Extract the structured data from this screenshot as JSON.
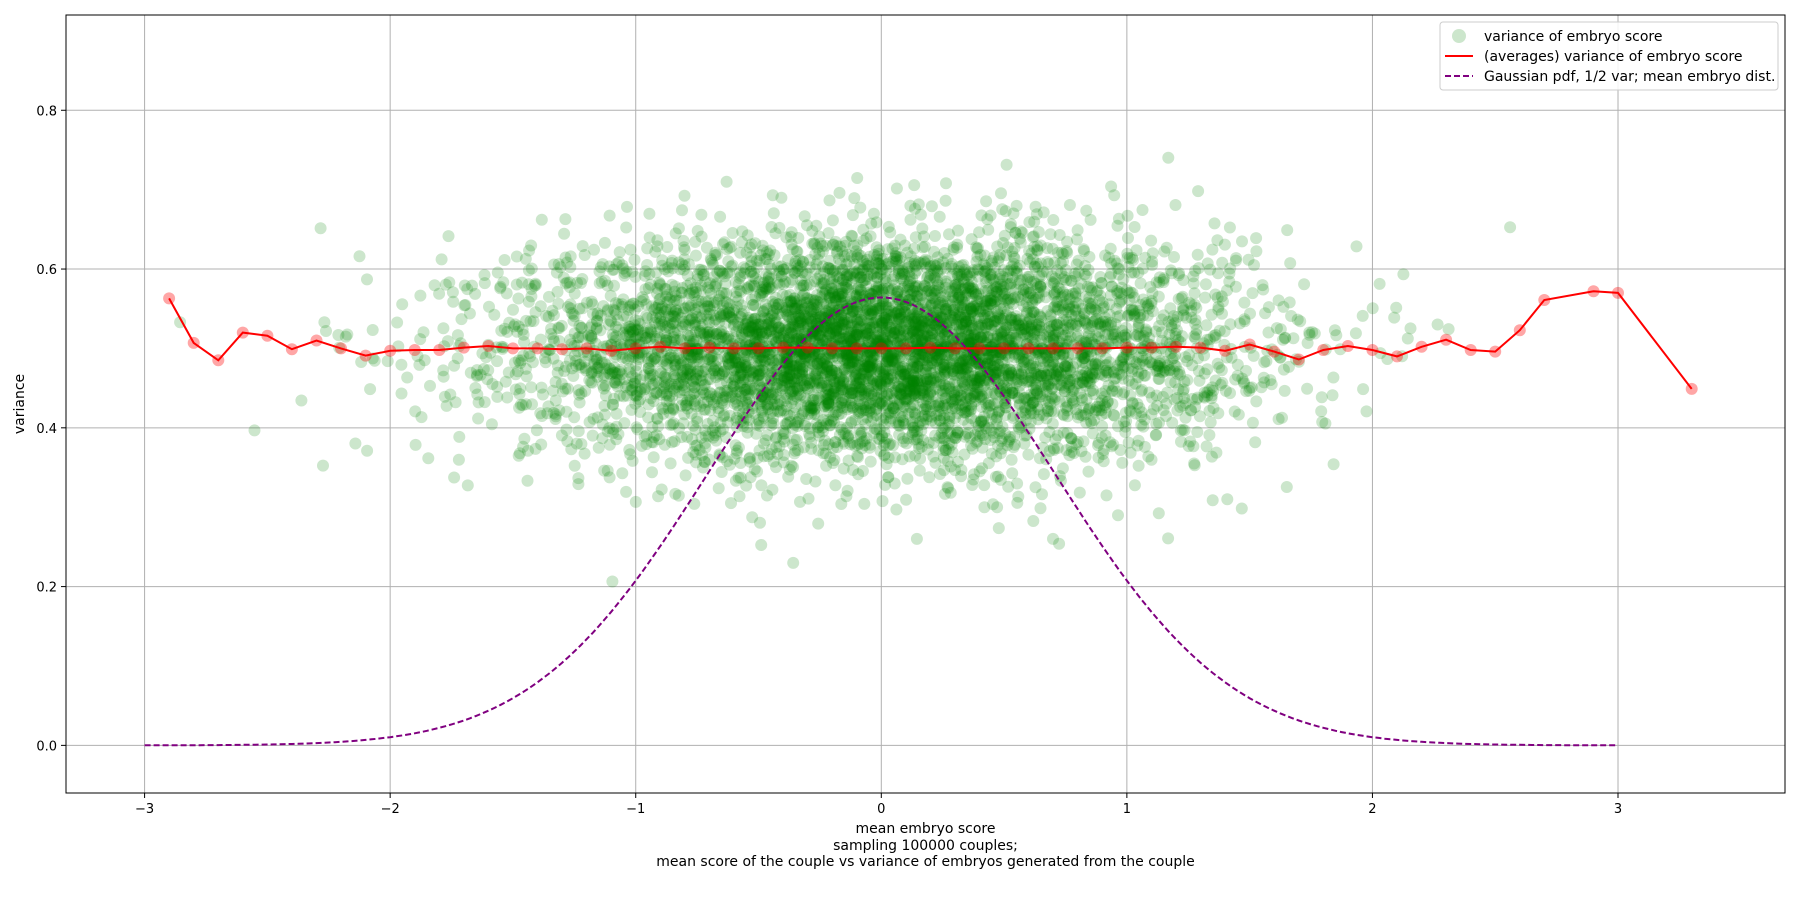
{
  "chart_data": {
    "type": "scatter",
    "xlabel": "mean embryo score",
    "xlabel_lines": [
      "sampling 100000 couples;",
      "mean score of the couple vs variance of embryos generated from the couple"
    ],
    "ylabel": "variance",
    "xlim": [
      -3.32,
      3.68
    ],
    "ylim": [
      -0.06,
      0.92
    ],
    "x_ticks": [
      -3,
      -2,
      -1,
      0,
      1,
      2,
      3
    ],
    "x_tick_labels": [
      "−3",
      "−2",
      "−1",
      "0",
      "1",
      "2",
      "3"
    ],
    "y_ticks": [
      0.0,
      0.2,
      0.4,
      0.6,
      0.8
    ],
    "y_tick_labels": [
      "0.0",
      "0.2",
      "0.4",
      "0.6",
      "0.8"
    ],
    "grid": true,
    "legend_position": "top-right",
    "colors": {
      "scatter": "#008000",
      "average": "#ff0000",
      "gaussian": "#800080",
      "grid": "#b0b0b0"
    },
    "series": [
      {
        "name": "variance of embryo score",
        "kind": "scatter",
        "count": 100000,
        "x_mean": 0.0,
        "x_sd": 0.7071,
        "y_mean": 0.5,
        "y_sd": 0.07
      },
      {
        "name": "(averages) variance of embryo score",
        "kind": "line-with-markers",
        "x": [
          -2.9,
          -2.8,
          -2.7,
          -2.6,
          -2.5,
          -2.4,
          -2.3,
          -2.2,
          -2.1,
          -2.0,
          -1.9,
          -1.8,
          -1.7,
          -1.6,
          -1.5,
          -1.4,
          -1.3,
          -1.2,
          -1.1,
          -1.0,
          -0.9,
          -0.8,
          -0.7,
          -0.6,
          -0.5,
          -0.4,
          -0.3,
          -0.2,
          -0.1,
          0.0,
          0.1,
          0.2,
          0.3,
          0.4,
          0.5,
          0.6,
          0.7,
          0.8,
          0.9,
          1.0,
          1.1,
          1.2,
          1.3,
          1.4,
          1.5,
          1.6,
          1.7,
          1.8,
          1.9,
          2.0,
          2.1,
          2.2,
          2.3,
          2.4,
          2.5,
          2.6,
          2.7,
          2.9,
          3.0,
          3.3
        ],
        "y": [
          0.563,
          0.507,
          0.485,
          0.52,
          0.516,
          0.499,
          0.51,
          0.5,
          0.491,
          0.497,
          0.498,
          0.498,
          0.501,
          0.503,
          0.5,
          0.5,
          0.499,
          0.5,
          0.497,
          0.5,
          0.502,
          0.5,
          0.501,
          0.5,
          0.5,
          0.501,
          0.501,
          0.5,
          0.5,
          0.5,
          0.5,
          0.501,
          0.5,
          0.5,
          0.5,
          0.5,
          0.5,
          0.5,
          0.5,
          0.501,
          0.501,
          0.502,
          0.501,
          0.497,
          0.505,
          0.496,
          0.486,
          0.498,
          0.503,
          0.498,
          0.49,
          0.502,
          0.511,
          0.498,
          0.496,
          0.523,
          0.561,
          0.572,
          0.57,
          0.449
        ]
      },
      {
        "name": "Gaussian pdf, 1/2 var; mean embryo dist.",
        "kind": "dashed-line",
        "x_from": -3,
        "x_to": 3,
        "mean": 0,
        "variance": 0.5,
        "peak": 0.564
      }
    ]
  }
}
